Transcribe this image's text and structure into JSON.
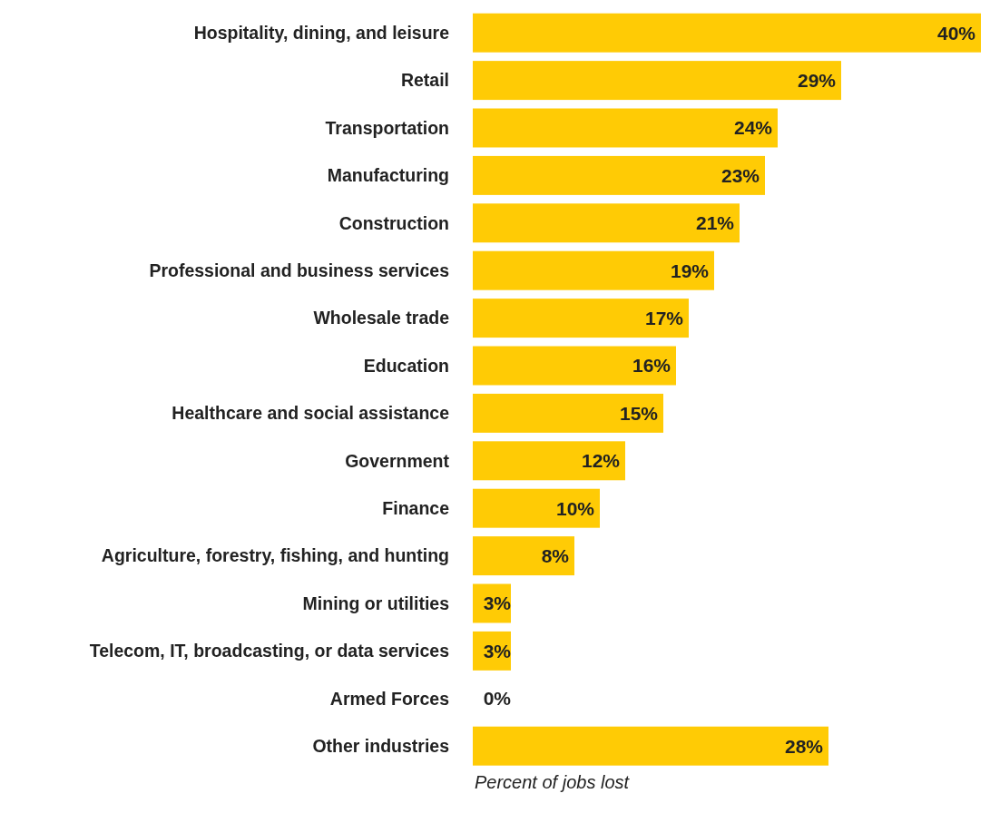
{
  "chart_data": {
    "type": "bar",
    "orientation": "horizontal",
    "xlabel": "Percent of jobs lost",
    "categories": [
      "Hospitality, dining, and leisure",
      "Retail",
      "Transportation",
      "Manufacturing",
      "Construction",
      "Professional and business services",
      "Wholesale trade",
      "Education",
      "Healthcare and social assistance",
      "Government",
      "Finance",
      "Agriculture, forestry, fishing, and hunting",
      "Mining or utilities",
      "Telecom, IT, broadcasting, or data services",
      "Armed Forces",
      "Other industries"
    ],
    "values": [
      40,
      29,
      24,
      23,
      21,
      19,
      17,
      16,
      15,
      12,
      10,
      8,
      3,
      3,
      0,
      28
    ],
    "value_labels": [
      "40%",
      "29%",
      "24%",
      "23%",
      "21%",
      "19%",
      "17%",
      "16%",
      "15%",
      "12%",
      "10%",
      "8%",
      "3%",
      "3%",
      "0%",
      "28%"
    ],
    "color": "#ffcb05",
    "xlim": [
      0,
      40
    ]
  }
}
